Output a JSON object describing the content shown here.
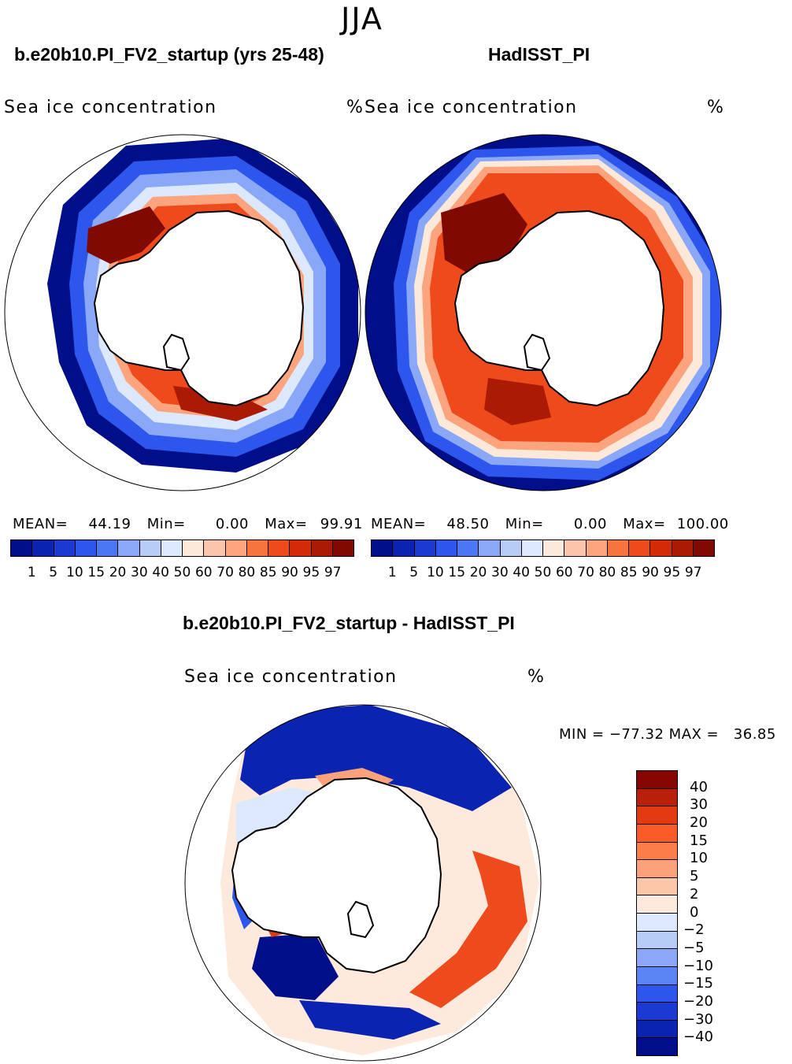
{
  "season": "JJA",
  "panels": {
    "model": {
      "title": "b.e20b10.PI_FV2_startup (yrs 25-48)",
      "variable": "Sea ice concentration",
      "units": "%",
      "stats": {
        "mean_label": "MEAN=",
        "mean": "44.19",
        "min_label": "Min=",
        "min": "0.00",
        "max_label": "Max=",
        "max": "99.91"
      }
    },
    "obs": {
      "title": "HadISST_PI",
      "variable": "Sea ice concentration",
      "units": "%",
      "stats": {
        "mean_label": "MEAN=",
        "mean": "48.50",
        "min_label": "Min=",
        "min": "0.00",
        "max_label": "Max=",
        "max": "100.00"
      }
    },
    "diff": {
      "title": "b.e20b10.PI_FV2_startup - HadISST_PI",
      "variable": "Sea ice concentration",
      "units": "%",
      "minmax": "MIN = −77.32 MAX =   36.85"
    }
  },
  "colorbar_abs": {
    "levels": [
      "1",
      "5",
      "10",
      "15",
      "20",
      "30",
      "40",
      "50",
      "60",
      "70",
      "80",
      "85",
      "90",
      "95",
      "97"
    ],
    "colors": [
      "#000e8a",
      "#0a23b0",
      "#1a3ad2",
      "#2d56ec",
      "#4a78f5",
      "#8aa8f7",
      "#b7cdf8",
      "#dce8fb",
      "#fde9da",
      "#fcc5aa",
      "#fba47e",
      "#f7743e",
      "#ee4a1c",
      "#d42a08",
      "#aa1a05",
      "#800a02"
    ]
  },
  "colorbar_diff": {
    "levels": [
      "40",
      "30",
      "20",
      "15",
      "10",
      "5",
      "2",
      "0",
      "−2",
      "−5",
      "−10",
      "−15",
      "−20",
      "−30",
      "−40"
    ],
    "colors": [
      "#870602",
      "#b8200a",
      "#e23b12",
      "#fa5a26",
      "#fb7d4a",
      "#fca27a",
      "#fcc6a8",
      "#fdeadc",
      "#dce8fb",
      "#b7cdf8",
      "#8aa8f7",
      "#5a84f3",
      "#2d56ec",
      "#1a3ad2",
      "#0a23b0",
      "#000e8a"
    ]
  }
}
